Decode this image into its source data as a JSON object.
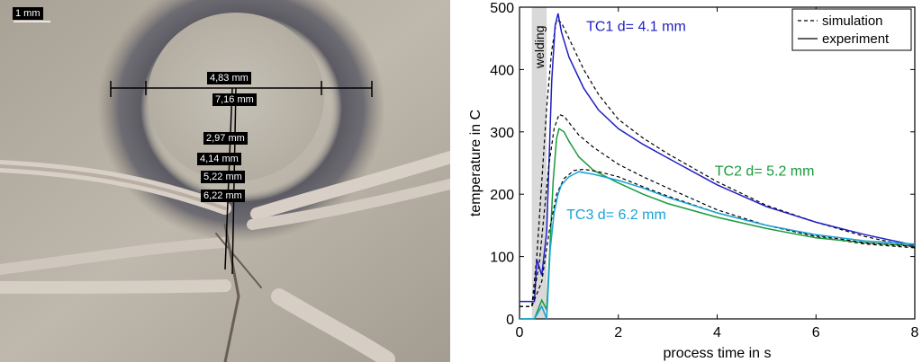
{
  "photo": {
    "scale_bar": "1 mm",
    "measurements": [
      "4,83 mm",
      "7,16 mm",
      "2,97 mm",
      "4,14 mm",
      "5,22 mm",
      "6,22 mm"
    ]
  },
  "chart_data": {
    "type": "line",
    "xlabel": "process time in s",
    "ylabel": "temperature in C",
    "xlim": [
      0,
      8
    ],
    "ylim": [
      0,
      500
    ],
    "xticks": [
      0,
      2,
      4,
      6,
      8
    ],
    "yticks": [
      0,
      100,
      200,
      300,
      400,
      500
    ],
    "welding_band": {
      "label": "welding",
      "x": [
        0.25,
        0.55
      ],
      "color": "#d9d9d9"
    },
    "legend": {
      "position": "top-right",
      "entries": [
        {
          "label": "simulation",
          "style": "dashed",
          "color": "#000000"
        },
        {
          "label": "experiment",
          "style": "solid",
          "color": "#000000"
        }
      ]
    },
    "series": [
      {
        "name": "TC1 d= 4.1 mm",
        "color": "#1f1fc4",
        "experiment": {
          "x": [
            0,
            0.3,
            0.35,
            0.45,
            0.55,
            0.65,
            0.72,
            0.78,
            0.85,
            1.0,
            1.3,
            1.6,
            2.0,
            2.5,
            3,
            4,
            5,
            6,
            7,
            8
          ],
          "y": [
            28,
            28,
            95,
            70,
            140,
            380,
            470,
            490,
            460,
            420,
            370,
            335,
            305,
            280,
            258,
            215,
            180,
            155,
            135,
            118
          ]
        },
        "simulation": {
          "x": [
            0,
            0.25,
            0.35,
            0.45,
            0.55,
            0.65,
            0.75,
            0.85,
            1.0,
            1.3,
            1.6,
            2.0,
            2.5,
            3,
            4,
            5,
            6,
            7,
            8
          ],
          "y": [
            20,
            20,
            100,
            220,
            340,
            430,
            480,
            475,
            450,
            400,
            360,
            320,
            290,
            265,
            220,
            182,
            155,
            132,
            115
          ]
        }
      },
      {
        "name": "TC2 d= 5.2 mm",
        "color": "#1a9a3c",
        "experiment": {
          "x": [
            0,
            0.3,
            0.45,
            0.55,
            0.6,
            0.68,
            0.75,
            0.8,
            0.9,
            1.0,
            1.2,
            1.5,
            2,
            2.5,
            3,
            4,
            5,
            6,
            7,
            8
          ],
          "y": [
            0,
            0,
            30,
            15,
            90,
            220,
            290,
            305,
            300,
            285,
            260,
            238,
            218,
            200,
            185,
            163,
            145,
            130,
            122,
            117
          ]
        },
        "simulation": {
          "x": [
            0,
            0.25,
            0.4,
            0.5,
            0.6,
            0.7,
            0.8,
            0.9,
            1.0,
            1.2,
            1.5,
            2,
            2.5,
            3,
            4,
            5,
            6,
            7,
            8
          ],
          "y": [
            20,
            20,
            90,
            170,
            250,
            305,
            328,
            325,
            315,
            295,
            275,
            248,
            228,
            210,
            175,
            150,
            132,
            120,
            114
          ]
        }
      },
      {
        "name": "TC3 d= 6.2 mm",
        "color": "#17a2d6",
        "experiment": {
          "x": [
            0,
            0.3,
            0.45,
            0.55,
            0.62,
            0.7,
            0.78,
            0.85,
            1.0,
            1.2,
            1.5,
            2,
            2.5,
            3,
            4,
            5,
            6,
            7,
            8
          ],
          "y": [
            0,
            0,
            20,
            0,
            110,
            170,
            200,
            215,
            228,
            236,
            232,
            222,
            210,
            195,
            170,
            150,
            135,
            125,
            120
          ]
        },
        "simulation": {
          "x": [
            0,
            0.25,
            0.45,
            0.6,
            0.75,
            0.9,
            1.1,
            1.3,
            1.6,
            2,
            2.5,
            3,
            4,
            5,
            6,
            7,
            8
          ],
          "y": [
            20,
            20,
            60,
            140,
            200,
            225,
            238,
            240,
            236,
            228,
            212,
            197,
            170,
            150,
            134,
            122,
            116
          ]
        }
      }
    ],
    "annotations": [
      {
        "text": "TC1 d= 4.1 mm",
        "x": 1.35,
        "y": 462,
        "color": "#1f1fc4"
      },
      {
        "text": "TC2 d= 5.2 mm",
        "x": 3.95,
        "y": 230,
        "color": "#1a9a3c"
      },
      {
        "text": "TC3 d= 6.2 mm",
        "x": 0.95,
        "y": 160,
        "color": "#17a2d6"
      }
    ]
  }
}
